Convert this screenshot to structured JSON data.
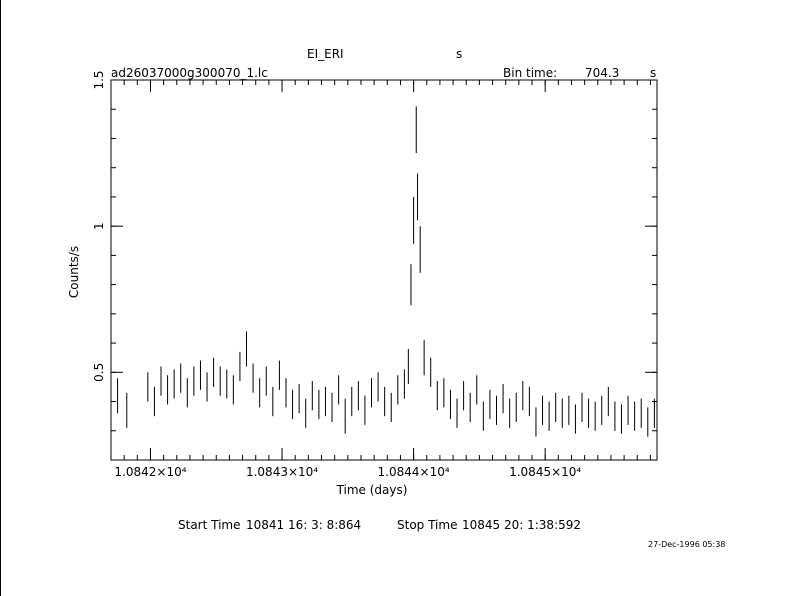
{
  "header": {
    "object": "EI_ERI",
    "object_unit": "s",
    "filename": "ad26037000g300070_1.lc",
    "bin_label": "Bin time:",
    "bin_value": "704.3",
    "bin_unit": "s"
  },
  "footer": {
    "start_label": "Start Time",
    "start_value": "10841 16: 3: 8:864",
    "stop_label": "Stop Time",
    "stop_value": "10845 20: 1:38:592",
    "date_stamp": "27-Dec-1996 05:38"
  },
  "chart_data": {
    "type": "scatter",
    "title": "EI_ERI",
    "xlabel": "Time (days)",
    "ylabel": "Counts/s",
    "xlim": [
      10841.7,
      10845.85
    ],
    "ylim": [
      0.2,
      1.5
    ],
    "x_ticks": [
      10842,
      10843,
      10844,
      10845
    ],
    "x_tick_labels": [
      "1.0842×10⁴",
      "1.0843×10⁴",
      "1.0844×10⁴",
      "1.0845×10⁴"
    ],
    "y_ticks": [
      0.5,
      1,
      1.5
    ],
    "y_tick_labels": [
      "0.5",
      "1",
      "1.5"
    ],
    "grid": false,
    "error_bars": true,
    "series": [
      {
        "x": [
          10841.75,
          10841.82,
          10841.98,
          10842.03,
          10842.08,
          10842.13,
          10842.18,
          10842.23,
          10842.28,
          10842.33,
          10842.38,
          10842.43,
          10842.48,
          10842.53,
          10842.58,
          10842.63,
          10842.68,
          10842.73,
          10842.78,
          10842.83,
          10842.88,
          10842.93,
          10842.98,
          10843.03,
          10843.08,
          10843.13,
          10843.18,
          10843.23,
          10843.28,
          10843.33,
          10843.38,
          10843.43,
          10843.48,
          10843.53,
          10843.58,
          10843.63,
          10843.68,
          10843.73,
          10843.78,
          10843.83,
          10843.88,
          10843.93,
          10843.96,
          10843.98,
          10844.0,
          10844.02,
          10844.03,
          10844.05,
          10844.08,
          10844.13,
          10844.18,
          10844.23,
          10844.28,
          10844.33,
          10844.38,
          10844.43,
          10844.48,
          10844.53,
          10844.58,
          10844.63,
          10844.68,
          10844.73,
          10844.78,
          10844.83,
          10844.88,
          10844.93,
          10844.98,
          10845.03,
          10845.08,
          10845.13,
          10845.18,
          10845.23,
          10845.28,
          10845.33,
          10845.38,
          10845.43,
          10845.48,
          10845.53,
          10845.58,
          10845.63,
          10845.68,
          10845.73,
          10845.78,
          10845.83
        ],
        "y": [
          0.42,
          0.37,
          0.45,
          0.4,
          0.47,
          0.44,
          0.46,
          0.48,
          0.43,
          0.47,
          0.49,
          0.45,
          0.5,
          0.47,
          0.46,
          0.44,
          0.52,
          0.58,
          0.48,
          0.43,
          0.47,
          0.4,
          0.49,
          0.43,
          0.39,
          0.41,
          0.36,
          0.42,
          0.39,
          0.4,
          0.38,
          0.44,
          0.35,
          0.4,
          0.42,
          0.37,
          0.43,
          0.45,
          0.4,
          0.38,
          0.44,
          0.46,
          0.52,
          0.8,
          1.02,
          1.33,
          1.1,
          0.92,
          0.55,
          0.5,
          0.42,
          0.43,
          0.39,
          0.36,
          0.42,
          0.38,
          0.44,
          0.35,
          0.39,
          0.37,
          0.41,
          0.36,
          0.38,
          0.42,
          0.4,
          0.33,
          0.37,
          0.35,
          0.38,
          0.36,
          0.37,
          0.34,
          0.38,
          0.36,
          0.35,
          0.37,
          0.4,
          0.35,
          0.34,
          0.37,
          0.35,
          0.36,
          0.33,
          0.36
        ],
        "err": [
          0.06,
          0.06,
          0.05,
          0.05,
          0.05,
          0.05,
          0.05,
          0.05,
          0.05,
          0.05,
          0.05,
          0.05,
          0.05,
          0.05,
          0.05,
          0.05,
          0.05,
          0.06,
          0.05,
          0.05,
          0.05,
          0.05,
          0.05,
          0.05,
          0.05,
          0.05,
          0.05,
          0.05,
          0.05,
          0.05,
          0.05,
          0.05,
          0.06,
          0.05,
          0.05,
          0.05,
          0.05,
          0.05,
          0.05,
          0.05,
          0.05,
          0.05,
          0.06,
          0.07,
          0.08,
          0.08,
          0.08,
          0.08,
          0.06,
          0.05,
          0.05,
          0.05,
          0.05,
          0.05,
          0.05,
          0.05,
          0.05,
          0.05,
          0.05,
          0.05,
          0.05,
          0.05,
          0.05,
          0.05,
          0.05,
          0.05,
          0.05,
          0.05,
          0.05,
          0.05,
          0.05,
          0.05,
          0.05,
          0.05,
          0.05,
          0.05,
          0.05,
          0.05,
          0.05,
          0.05,
          0.05,
          0.05,
          0.05,
          0.05
        ]
      }
    ]
  }
}
